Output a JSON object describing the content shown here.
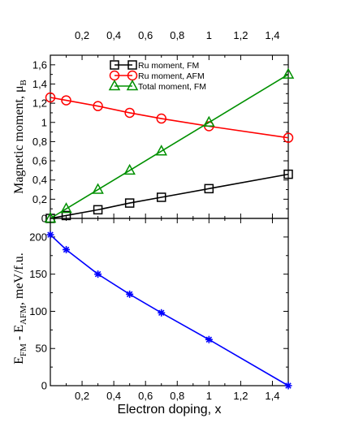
{
  "chart_data": [
    {
      "type": "line",
      "ylabel_main": "Magnetic moment, μ",
      "ylabel_sub": "B",
      "xlim": [
        0,
        1.5
      ],
      "ylim": [
        0,
        1.7
      ],
      "x_ticks": [
        0.2,
        0.4,
        0.6,
        0.8,
        1,
        1.2,
        1.4
      ],
      "x_tick_labels": [
        "0,2",
        "0,4",
        "0,6",
        "0,8",
        "1",
        "1,2",
        "1,4"
      ],
      "y_ticks": [
        0,
        0.2,
        0.4,
        0.6,
        0.8,
        1,
        1.2,
        1.4,
        1.6
      ],
      "y_tick_labels": [
        "0",
        "0,2",
        "0,4",
        "0,6",
        "0,8",
        "1",
        "1,2",
        "1,4",
        "1,6"
      ],
      "legend_position": "top-center",
      "grid": false,
      "series": [
        {
          "name": "Ru moment, FM",
          "color": "#000000",
          "marker": "square",
          "x": [
            0,
            0.1,
            0.3,
            0.5,
            0.7,
            1.0,
            1.5
          ],
          "y": [
            0.0,
            0.03,
            0.09,
            0.16,
            0.22,
            0.31,
            0.46
          ]
        },
        {
          "name": "Ru moment, AFM",
          "color": "#ff0000",
          "marker": "circle",
          "x": [
            0,
            0.1,
            0.3,
            0.5,
            0.7,
            1.0,
            1.5
          ],
          "y": [
            1.26,
            1.23,
            1.17,
            1.1,
            1.04,
            0.96,
            0.84
          ]
        },
        {
          "name": "Total moment, FM",
          "color": "#009000",
          "marker": "triangle",
          "x": [
            0,
            0.1,
            0.3,
            0.5,
            0.7,
            1.0,
            1.5
          ],
          "y": [
            0.0,
            0.1,
            0.3,
            0.5,
            0.7,
            1.0,
            1.5
          ]
        }
      ]
    },
    {
      "type": "line",
      "ylabel_parts": [
        {
          "t": "E",
          "s": "n"
        },
        {
          "t": "FM",
          "s": "sub"
        },
        {
          "t": " - E",
          "s": "n"
        },
        {
          "t": "AFM",
          "s": "sub"
        },
        {
          "t": ", meV/f.u.",
          "s": "n"
        }
      ],
      "xlabel": "Electron doping, x",
      "xlim": [
        0,
        1.5
      ],
      "ylim": [
        0,
        225
      ],
      "x_ticks": [
        0.2,
        0.4,
        0.6,
        0.8,
        1,
        1.2,
        1.4
      ],
      "x_tick_labels": [
        "0,2",
        "0,4",
        "0,6",
        "0,8",
        "1",
        "1,2",
        "1,4"
      ],
      "y_ticks": [
        0,
        50,
        100,
        150,
        200
      ],
      "y_tick_labels": [
        "0",
        "50",
        "100",
        "150",
        "200"
      ],
      "grid": false,
      "series": [
        {
          "color": "#0000ff",
          "marker": "star",
          "x": [
            0,
            0.1,
            0.3,
            0.5,
            0.7,
            1.0,
            1.5
          ],
          "y": [
            203,
            183,
            150,
            123,
            98,
            62,
            0
          ]
        }
      ]
    }
  ]
}
